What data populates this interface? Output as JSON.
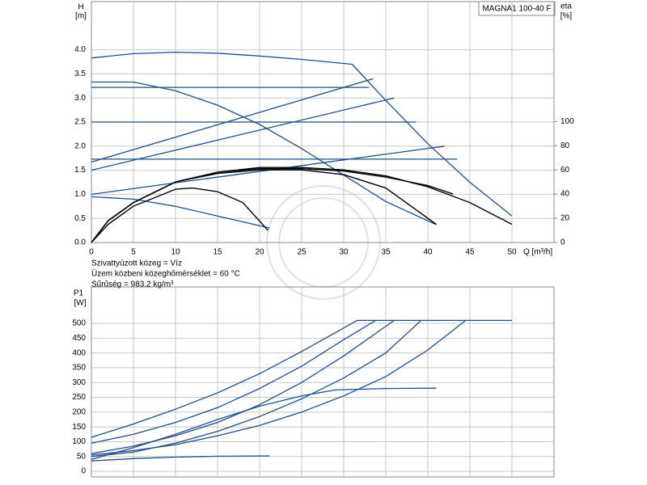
{
  "chart_data": [
    {
      "type": "line",
      "title": "MAGNA1 100-40 F",
      "y_label": "H",
      "y_unit": "[m]",
      "y2_label": "eta",
      "y2_unit": "[%]",
      "x_label": "Q [m³/h]",
      "notes": [
        "Szivattyúzott közeg = Víz",
        "Üzem közbeni közeghőmérséklet = 60 °C",
        "Sűrűség = 983.2 kg/m³"
      ],
      "xlim": [
        0,
        55
      ],
      "xticks": [
        0,
        5,
        10,
        15,
        20,
        25,
        30,
        35,
        40,
        45,
        50
      ],
      "xtick_labels": true,
      "ylim": [
        0,
        5
      ],
      "yticks": [
        {
          "value": 0,
          "label": "0.0"
        },
        {
          "value": 0.5,
          "label": "0.5"
        },
        {
          "value": 1,
          "label": "1.0"
        },
        {
          "value": 1.5,
          "label": "1.5"
        },
        {
          "value": 2,
          "label": "2.0"
        },
        {
          "value": 2.5,
          "label": "2.5"
        },
        {
          "value": 3,
          "label": "3.0"
        },
        {
          "value": 3.5,
          "label": "3.5"
        },
        {
          "value": 4,
          "label": "4.0"
        }
      ],
      "y2lim": [
        0,
        199
      ],
      "y2ticks": [
        0,
        20,
        40,
        60,
        80,
        100
      ],
      "grid": true,
      "series": [
        {
          "color": "#1f4e8c",
          "x": [
            0,
            5,
            10,
            15,
            20,
            25,
            31,
            35,
            40,
            45,
            50
          ],
          "values": [
            3.83,
            3.92,
            3.95,
            3.93,
            3.87,
            3.8,
            3.7,
            2.95,
            2.05,
            1.25,
            0.55
          ]
        },
        {
          "color": "#1f4e8c",
          "x": [
            0,
            5,
            10,
            15,
            20,
            25,
            30,
            35,
            41
          ],
          "values": [
            3.33,
            3.33,
            3.15,
            2.85,
            2.45,
            1.95,
            1.4,
            0.85,
            0.37
          ]
        },
        {
          "color": "#1f4e8c",
          "x": [
            0,
            33
          ],
          "values": [
            3.22,
            3.22
          ]
        },
        {
          "color": "#1f4e8c",
          "x": [
            0,
            38.6
          ],
          "values": [
            2.5,
            2.5
          ]
        },
        {
          "color": "#1f4e8c",
          "x": [
            0,
            43.5
          ],
          "values": [
            1.73,
            1.73
          ]
        },
        {
          "color": "#1f4e8c",
          "x": [
            0,
            33.5
          ],
          "values": [
            1.67,
            3.4
          ]
        },
        {
          "color": "#1f4e8c",
          "x": [
            0,
            36
          ],
          "values": [
            1.5,
            3.0
          ]
        },
        {
          "color": "#1f4e8c",
          "x": [
            0,
            42
          ],
          "values": [
            1.0,
            2.0
          ]
        },
        {
          "color": "#1f4e8c",
          "x": [
            0,
            5,
            10,
            15,
            21.2
          ],
          "values": [
            0.95,
            0.9,
            0.75,
            0.55,
            0.3
          ]
        },
        {
          "color": "#000000",
          "axis": "y2",
          "x": [
            0,
            2,
            5,
            10,
            15,
            20,
            25,
            30,
            35,
            40,
            45,
            50
          ],
          "values": [
            0,
            18,
            33,
            50,
            58,
            62,
            62,
            60,
            55,
            46,
            33,
            15
          ]
        },
        {
          "color": "#000000",
          "axis": "y2",
          "x": [
            0,
            2,
            5,
            10,
            15,
            20,
            25,
            30,
            35,
            41
          ],
          "values": [
            0,
            18,
            33,
            50,
            57,
            60,
            60,
            56,
            45,
            15
          ]
        },
        {
          "color": "#000000",
          "axis": "y2",
          "x": [
            0,
            2,
            5,
            10,
            15,
            20,
            25,
            30,
            35,
            40,
            43
          ],
          "values": [
            0,
            18,
            33,
            50,
            58,
            61,
            61,
            59,
            54,
            47,
            40
          ]
        },
        {
          "color": "#000000",
          "axis": "y2",
          "x": [
            0,
            2,
            5,
            10,
            12,
            15,
            18,
            21
          ],
          "values": [
            0,
            15,
            30,
            44,
            45,
            42,
            33,
            10
          ]
        }
      ]
    },
    {
      "type": "line",
      "y_label": "P1",
      "y_unit": "[W]",
      "xlim": [
        0,
        55
      ],
      "xticks": [
        0,
        5,
        10,
        15,
        20,
        25,
        30,
        35,
        40,
        45,
        50
      ],
      "xtick_labels": false,
      "ylim": [
        -19,
        623
      ],
      "yticks": [
        0,
        50,
        100,
        150,
        200,
        250,
        300,
        350,
        400,
        450,
        500
      ],
      "grid": true,
      "series": [
        {
          "color": "#1f4e8c",
          "x": [
            0,
            5,
            10,
            15,
            20,
            25,
            31.6,
            35,
            40,
            45,
            50
          ],
          "values": [
            115,
            160,
            210,
            265,
            330,
            405,
            510,
            510,
            510,
            510,
            510
          ]
        },
        {
          "color": "#1f4e8c",
          "x": [
            0,
            5,
            10,
            15,
            20,
            25,
            30,
            33.8
          ],
          "values": [
            95,
            125,
            165,
            215,
            280,
            355,
            445,
            510
          ]
        },
        {
          "color": "#1f4e8c",
          "x": [
            0,
            5,
            10,
            15,
            20,
            25,
            30,
            36
          ],
          "values": [
            60,
            85,
            120,
            165,
            225,
            300,
            390,
            510
          ]
        },
        {
          "color": "#1f4e8c",
          "x": [
            0,
            5,
            10,
            15,
            20,
            25,
            30,
            35,
            39.2
          ],
          "values": [
            50,
            65,
            95,
            135,
            185,
            245,
            315,
            400,
            510
          ]
        },
        {
          "color": "#1f4e8c",
          "x": [
            0,
            5,
            10,
            15,
            20,
            25,
            30,
            35,
            40,
            44.5
          ],
          "values": [
            55,
            70,
            90,
            120,
            155,
            200,
            255,
            320,
            410,
            510
          ]
        },
        {
          "color": "#1f4e8c",
          "x": [
            0,
            5,
            10,
            15,
            20,
            25,
            29,
            35,
            41
          ],
          "values": [
            40,
            80,
            125,
            175,
            220,
            255,
            275,
            280,
            281
          ]
        },
        {
          "color": "#1f4e8c",
          "x": [
            0,
            5,
            10,
            15,
            21.2
          ],
          "values": [
            35,
            43,
            48,
            51,
            52
          ]
        }
      ]
    }
  ]
}
